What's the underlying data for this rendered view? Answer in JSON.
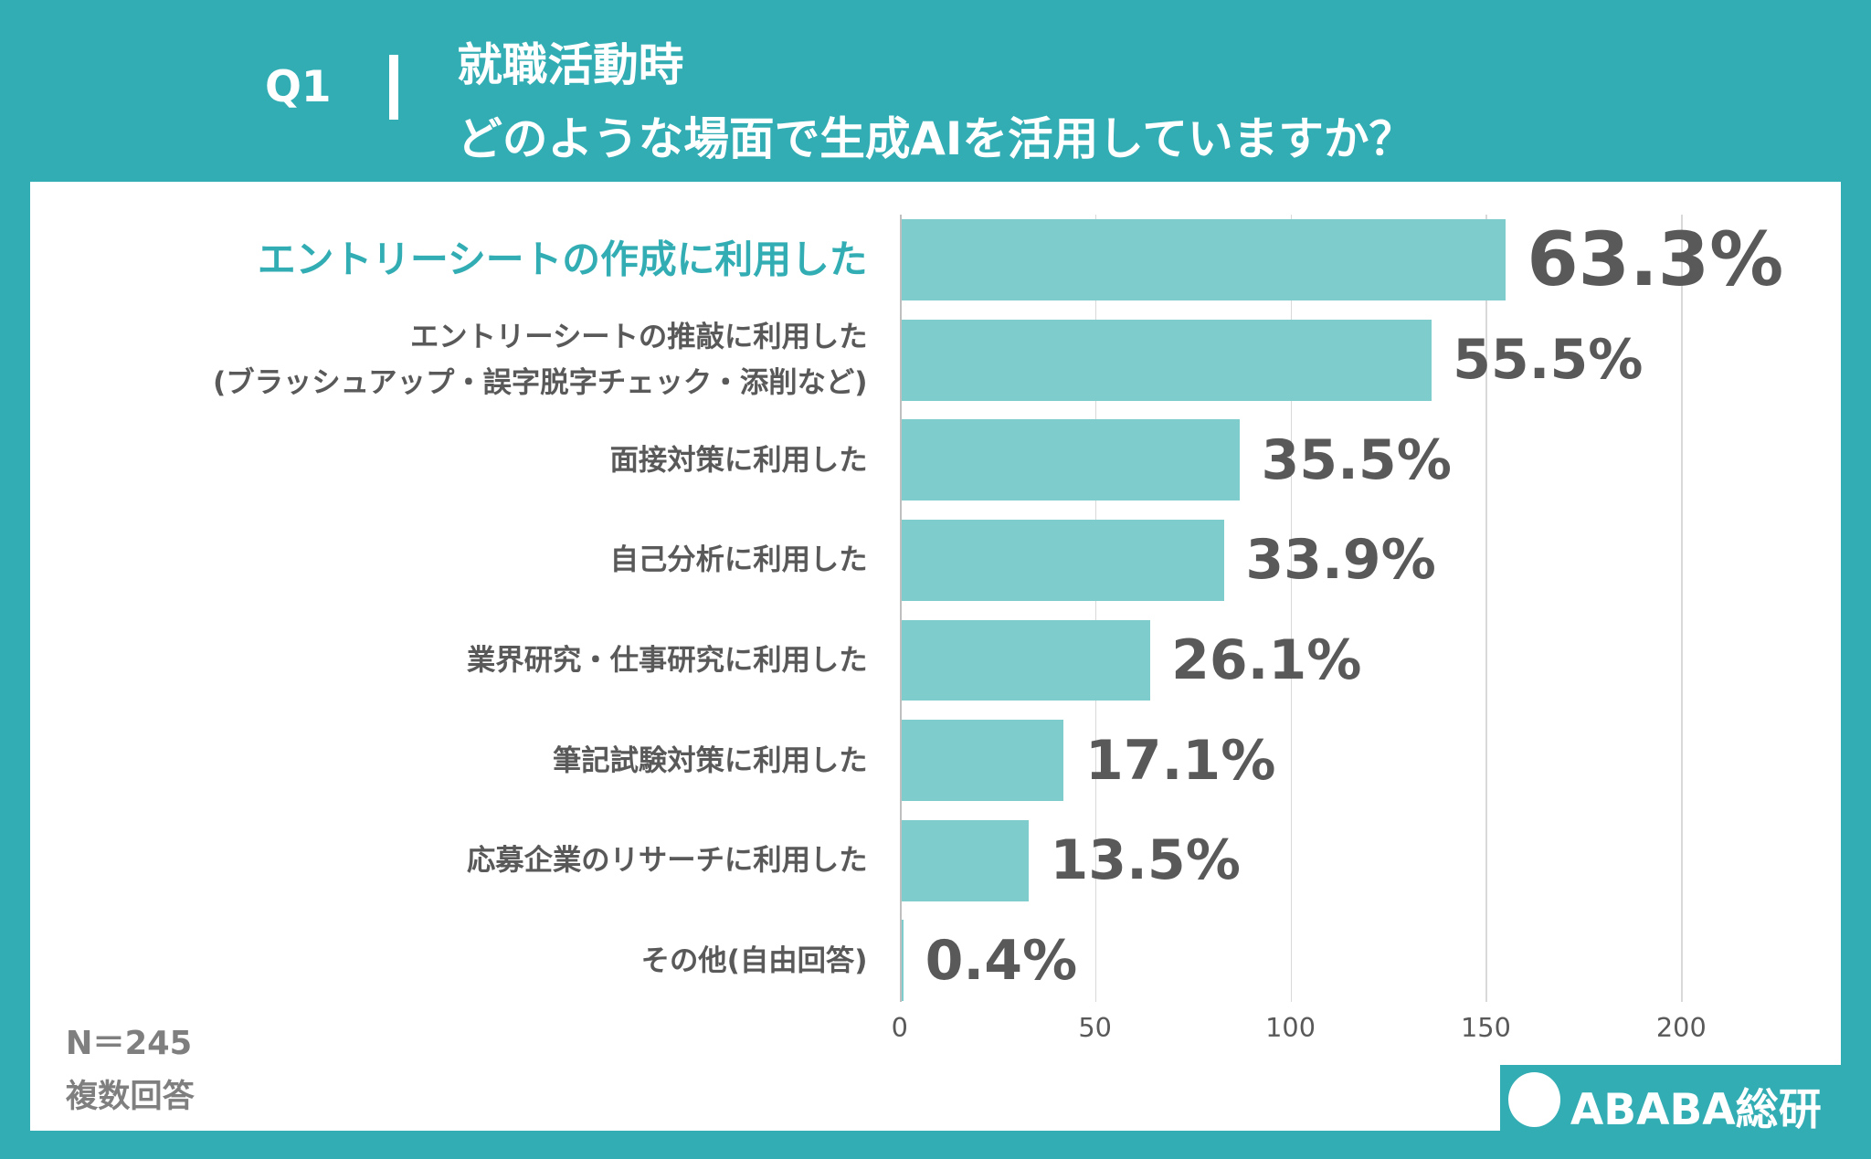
{
  "header": {
    "question": "Q1",
    "title_lines": [
      "就職活動時",
      "どのような場面で生成AIを活用していますか？"
    ]
  },
  "chart_data": {
    "type": "bar",
    "orientation": "horizontal",
    "categories": [
      "エントリーシートの作成に利用した",
      "エントリーシートの推敲に利用した\n(ブラッシュアップ・誤字脱字チェック・添削など)",
      "面接対策に利用した",
      "自己分析に利用した",
      "業界研究・仕事研究に利用した",
      "筆記試験対策に利用した",
      "応募企業のリサーチに利用した",
      "その他(自由回答)"
    ],
    "values": [
      155,
      136,
      87,
      83,
      64,
      42,
      33,
      1
    ],
    "value_labels": [
      "63.3%",
      "55.5%",
      "35.5%",
      "33.9%",
      "26.1%",
      "17.1%",
      "13.5%",
      "0.4%"
    ],
    "color": "#7ecccc",
    "xlim": [
      0,
      200
    ],
    "xticks": [
      0,
      50,
      100,
      150,
      200
    ],
    "grid": true
  },
  "notes": [
    "N＝245",
    "複数回答"
  ],
  "logo": "ABABA総研"
}
